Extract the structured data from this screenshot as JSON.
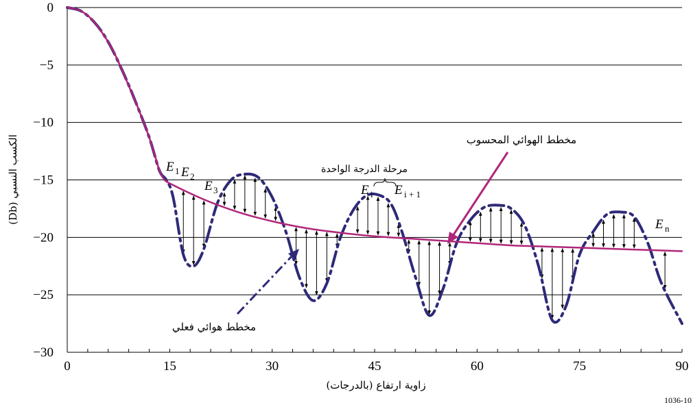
{
  "chart_data": {
    "type": "line",
    "xlabel": "زاوية ارتفاع (بالدرجات)",
    "ylabel": "الكسب النسبي (Db)",
    "xlim": [
      0,
      90
    ],
    "ylim": [
      -30,
      0
    ],
    "xticks": [
      0,
      15,
      30,
      45,
      60,
      75,
      90
    ],
    "yticks": [
      0,
      -5,
      -10,
      -15,
      -20,
      -25,
      -30
    ],
    "x_tick_labels": [
      "0",
      "15",
      "30",
      "45",
      "60",
      "75",
      "90"
    ],
    "y_tick_labels": [
      "0",
      "−5",
      "−10",
      "−15",
      "−20",
      "−25",
      "−30"
    ],
    "grid": "horizontal",
    "series": [
      {
        "name": "مخطط الهوائي المحسوب",
        "color": "#b0267a",
        "style": "solid",
        "x": [
          0,
          1,
          2,
          3,
          4,
          5,
          6,
          7,
          8,
          9,
          10,
          11,
          12,
          13,
          13.5,
          14,
          15,
          20,
          25,
          30,
          35,
          40,
          45,
          50,
          55,
          60,
          65,
          70,
          75,
          80,
          85,
          90
        ],
        "y": [
          0,
          -0.1,
          -0.3,
          -0.7,
          -1.3,
          -2.1,
          -3.0,
          -4.1,
          -5.4,
          -6.8,
          -8.2,
          -9.7,
          -11.3,
          -13.2,
          -14.2,
          -14.8,
          -15.3,
          -16.7,
          -17.8,
          -18.6,
          -19.2,
          -19.6,
          -19.9,
          -20.1,
          -20.3,
          -20.5,
          -20.7,
          -20.8,
          -20.9,
          -21.0,
          -21.1,
          -21.2
        ]
      },
      {
        "name": "مخطط هوائي فعلي",
        "color": "#2e2a78",
        "style": "dashdot",
        "x": [
          0,
          2,
          4,
          6,
          8,
          10,
          12,
          13.5,
          14.5,
          15.5,
          17,
          18.5,
          20,
          22,
          24,
          26,
          28,
          30,
          32,
          34,
          36,
          38,
          40,
          42,
          44,
          46,
          47.5,
          49,
          51,
          53,
          55,
          57,
          59,
          61,
          63,
          65,
          67,
          69,
          71,
          73,
          75,
          77,
          79,
          81,
          83,
          85,
          87,
          90
        ],
        "y": [
          0,
          -0.3,
          -1.3,
          -3.0,
          -5.4,
          -8.2,
          -11.3,
          -14.2,
          -15.0,
          -16.5,
          -21.5,
          -22.5,
          -21.0,
          -17.0,
          -15.0,
          -14.5,
          -14.8,
          -16.5,
          -19.5,
          -23.5,
          -25.5,
          -24.0,
          -20.0,
          -17.5,
          -16.3,
          -16.4,
          -17.2,
          -19.5,
          -23.5,
          -26.8,
          -24.5,
          -20.5,
          -18.5,
          -17.4,
          -17.2,
          -17.5,
          -19.0,
          -22.5,
          -27.2,
          -26.0,
          -21.5,
          -19.5,
          -18.0,
          -17.8,
          -18.2,
          -20.5,
          -24.0,
          -27.5
        ]
      }
    ],
    "annotations": {
      "computed_pattern": "مخطط الهوائي المحسوب",
      "actual_pattern": "مخطط هوائي فعلي",
      "step_stage": "مرحلة الدرجة الواحدة",
      "E1": {
        "base": "E",
        "sub": "1"
      },
      "E2": {
        "base": "E",
        "sub": "2"
      },
      "E3": {
        "base": "E",
        "sub": "3"
      },
      "Ei": {
        "base": "E",
        "sub": "i"
      },
      "Ei1": {
        "base": "E",
        "sub": "i + 1"
      },
      "En": {
        "base": "E",
        "sub": "n"
      }
    },
    "figure_id": "1036-10"
  }
}
